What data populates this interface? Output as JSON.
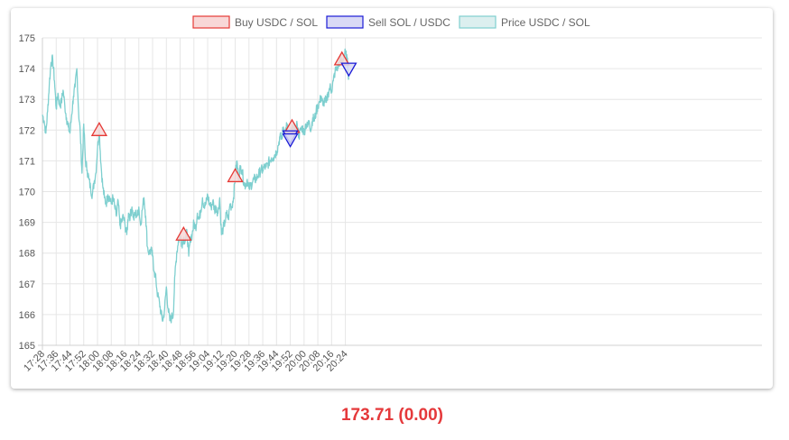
{
  "chart_data": {
    "type": "line",
    "legend": [
      {
        "label": "Buy USDC / SOL",
        "stroke": "#e53935",
        "fill": "#f8d7d7"
      },
      {
        "label": "Sell SOL / USDC",
        "stroke": "#1a1ad6",
        "fill": "#d9d9f5"
      },
      {
        "label": "Price USDC / SOL",
        "stroke": "#7ecfcf",
        "fill": "#dcefef"
      }
    ],
    "legend_position": "top-center",
    "grid": true,
    "ylim": [
      165,
      175
    ],
    "yticks": [
      "165",
      "166",
      "167",
      "168",
      "169",
      "170",
      "171",
      "172",
      "173",
      "174",
      "175"
    ],
    "xticks": [
      "17:28",
      "17:36",
      "17:44",
      "17:52",
      "18:00",
      "18:08",
      "18:16",
      "18:24",
      "18:32",
      "18:40",
      "18:48",
      "18:56",
      "19:04",
      "19:12",
      "19:20",
      "19:28",
      "19:36",
      "19:44",
      "19:52",
      "20:00",
      "20:08",
      "20:16",
      "20:24"
    ],
    "xlim_minutes": [
      1048,
      1466
    ],
    "series": [
      {
        "name": "Price USDC / SOL",
        "color": "#7ecfcf",
        "points": [
          [
            "17:28",
            172.5
          ],
          [
            "17:29",
            172.3
          ],
          [
            "17:30",
            171.9
          ],
          [
            "17:31",
            172.6
          ],
          [
            "17:32",
            173.5
          ],
          [
            "17:33",
            174.2
          ],
          [
            "17:34",
            174.3
          ],
          [
            "17:35",
            173.6
          ],
          [
            "17:36",
            172.7
          ],
          [
            "17:37",
            173.2
          ],
          [
            "17:38",
            172.8
          ],
          [
            "17:39",
            172.9
          ],
          [
            "17:40",
            173.3
          ],
          [
            "17:41",
            172.8
          ],
          [
            "17:42",
            172.4
          ],
          [
            "17:43",
            172.1
          ],
          [
            "17:44",
            171.9
          ],
          [
            "17:45",
            172.5
          ],
          [
            "17:46",
            173.1
          ],
          [
            "17:47",
            173.4
          ],
          [
            "17:48",
            174.0
          ],
          [
            "17:49",
            172.6
          ],
          [
            "17:50",
            171.9
          ],
          [
            "17:51",
            170.6
          ],
          [
            "17:52",
            172.2
          ],
          [
            "17:53",
            171.0
          ],
          [
            "17:54",
            170.7
          ],
          [
            "17:55",
            170.4
          ],
          [
            "17:56",
            170.1
          ],
          [
            "17:57",
            169.9
          ],
          [
            "17:58",
            170.3
          ],
          [
            "17:59",
            170.6
          ],
          [
            "18:00",
            171.4
          ],
          [
            "18:01",
            172.0
          ],
          [
            "18:02",
            170.9
          ],
          [
            "18:03",
            170.2
          ],
          [
            "18:04",
            169.8
          ],
          [
            "18:05",
            169.6
          ],
          [
            "18:06",
            169.9
          ],
          [
            "18:07",
            169.8
          ],
          [
            "18:08",
            169.6
          ],
          [
            "18:09",
            169.8
          ],
          [
            "18:10",
            169.5
          ],
          [
            "18:11",
            169.2
          ],
          [
            "18:12",
            169.7
          ],
          [
            "18:13",
            168.9
          ],
          [
            "18:14",
            169.0
          ],
          [
            "18:15",
            169.2
          ],
          [
            "18:16",
            168.9
          ],
          [
            "18:17",
            168.6
          ],
          [
            "18:18",
            169.3
          ],
          [
            "18:19",
            169.2
          ],
          [
            "18:20",
            169.5
          ],
          [
            "18:21",
            169.1
          ],
          [
            "18:22",
            169.3
          ],
          [
            "18:23",
            169.2
          ],
          [
            "18:24",
            169.5
          ],
          [
            "18:25",
            168.9
          ],
          [
            "18:26",
            169.4
          ],
          [
            "18:27",
            169.8
          ],
          [
            "18:28",
            169.2
          ],
          [
            "18:29",
            168.2
          ],
          [
            "18:30",
            168.0
          ],
          [
            "18:31",
            168.1
          ],
          [
            "18:32",
            167.9
          ],
          [
            "18:33",
            167.4
          ],
          [
            "18:34",
            167.1
          ],
          [
            "18:35",
            166.6
          ],
          [
            "18:36",
            166.4
          ],
          [
            "18:37",
            166.0
          ],
          [
            "18:38",
            165.8
          ],
          [
            "18:39",
            166.2
          ],
          [
            "18:40",
            166.9
          ],
          [
            "18:41",
            166.2
          ],
          [
            "18:42",
            165.8
          ],
          [
            "18:43",
            165.9
          ],
          [
            "18:44",
            166.0
          ],
          [
            "18:45",
            167.3
          ],
          [
            "18:46",
            168.0
          ],
          [
            "18:47",
            168.4
          ],
          [
            "18:48",
            168.6
          ],
          [
            "18:49",
            168.3
          ],
          [
            "18:50",
            168.5
          ],
          [
            "18:51",
            168.4
          ],
          [
            "18:52",
            168.7
          ],
          [
            "18:53",
            167.9
          ],
          [
            "18:54",
            168.5
          ],
          [
            "18:55",
            168.6
          ],
          [
            "18:56",
            169.0
          ],
          [
            "18:57",
            168.8
          ],
          [
            "18:58",
            169.3
          ],
          [
            "18:59",
            169.1
          ],
          [
            "19:00",
            169.4
          ],
          [
            "19:01",
            169.8
          ],
          [
            "19:02",
            169.5
          ],
          [
            "19:03",
            169.6
          ],
          [
            "19:04",
            169.9
          ],
          [
            "19:05",
            169.6
          ],
          [
            "19:06",
            169.5
          ],
          [
            "19:07",
            169.7
          ],
          [
            "19:08",
            169.4
          ],
          [
            "19:09",
            169.5
          ],
          [
            "19:10",
            169.3
          ],
          [
            "19:11",
            169.8
          ],
          [
            "19:12",
            168.6
          ],
          [
            "19:13",
            168.8
          ],
          [
            "19:14",
            169.0
          ],
          [
            "19:15",
            169.3
          ],
          [
            "19:16",
            169.1
          ],
          [
            "19:17",
            169.6
          ],
          [
            "19:18",
            169.5
          ],
          [
            "19:19",
            169.8
          ],
          [
            "19:20",
            170.5
          ],
          [
            "19:21",
            171.0
          ],
          [
            "19:22",
            170.4
          ],
          [
            "19:23",
            170.8
          ],
          [
            "19:24",
            170.7
          ],
          [
            "19:25",
            170.3
          ],
          [
            "19:26",
            170.2
          ],
          [
            "19:27",
            170.4
          ],
          [
            "19:28",
            170.1
          ],
          [
            "19:29",
            170.2
          ],
          [
            "19:30",
            170.3
          ],
          [
            "19:31",
            170.4
          ],
          [
            "19:32",
            170.4
          ],
          [
            "19:33",
            170.5
          ],
          [
            "19:34",
            170.6
          ],
          [
            "19:35",
            170.7
          ],
          [
            "19:36",
            170.7
          ],
          [
            "19:37",
            170.8
          ],
          [
            "19:38",
            170.8
          ],
          [
            "19:39",
            170.9
          ],
          [
            "19:40",
            171.0
          ],
          [
            "19:41",
            171.1
          ],
          [
            "19:42",
            171.1
          ],
          [
            "19:43",
            171.2
          ],
          [
            "19:44",
            171.3
          ],
          [
            "19:45",
            171.5
          ],
          [
            "19:46",
            171.8
          ],
          [
            "19:47",
            171.7
          ],
          [
            "19:48",
            172.1
          ],
          [
            "19:49",
            171.9
          ],
          [
            "19:50",
            172.2
          ],
          [
            "19:51",
            171.8
          ],
          [
            "19:52",
            171.9
          ],
          [
            "19:53",
            172.0
          ],
          [
            "19:54",
            172.1
          ],
          [
            "19:55",
            171.9
          ],
          [
            "19:56",
            172.2
          ],
          [
            "19:57",
            171.8
          ],
          [
            "19:58",
            172.0
          ],
          [
            "19:59",
            172.1
          ],
          [
            "20:00",
            171.9
          ],
          [
            "20:01",
            172.2
          ],
          [
            "20:02",
            172.1
          ],
          [
            "20:03",
            172.3
          ],
          [
            "20:04",
            172.0
          ],
          [
            "20:05",
            172.4
          ],
          [
            "20:06",
            172.3
          ],
          [
            "20:07",
            172.6
          ],
          [
            "20:08",
            172.8
          ],
          [
            "20:09",
            172.9
          ],
          [
            "20:10",
            173.1
          ],
          [
            "20:11",
            172.8
          ],
          [
            "20:12",
            173.0
          ],
          [
            "20:13",
            172.9
          ],
          [
            "20:14",
            173.2
          ],
          [
            "20:15",
            173.4
          ],
          [
            "20:16",
            173.3
          ],
          [
            "20:17",
            173.6
          ],
          [
            "20:18",
            173.9
          ],
          [
            "20:19",
            174.0
          ],
          [
            "20:20",
            174.1
          ],
          [
            "20:21",
            174.3
          ],
          [
            "20:22",
            174.2
          ],
          [
            "20:23",
            174.4
          ],
          [
            "20:24",
            174.5
          ],
          [
            "20:25",
            174.3
          ],
          [
            "20:26",
            173.7
          ]
        ]
      }
    ],
    "buy_markers": [
      {
        "time": "18:01",
        "price": 172.0
      },
      {
        "time": "18:50",
        "price": 168.6
      },
      {
        "time": "19:20",
        "price": 170.5
      },
      {
        "time": "19:53",
        "price": 172.1
      },
      {
        "time": "20:22",
        "price": 174.3
      }
    ],
    "sell_markers": [
      {
        "time": "19:52",
        "price": 171.8
      },
      {
        "time": "19:52",
        "price": 171.7
      },
      {
        "time": "20:26",
        "price": 174.0
      }
    ]
  },
  "price_display": "173.71 (0.00)"
}
